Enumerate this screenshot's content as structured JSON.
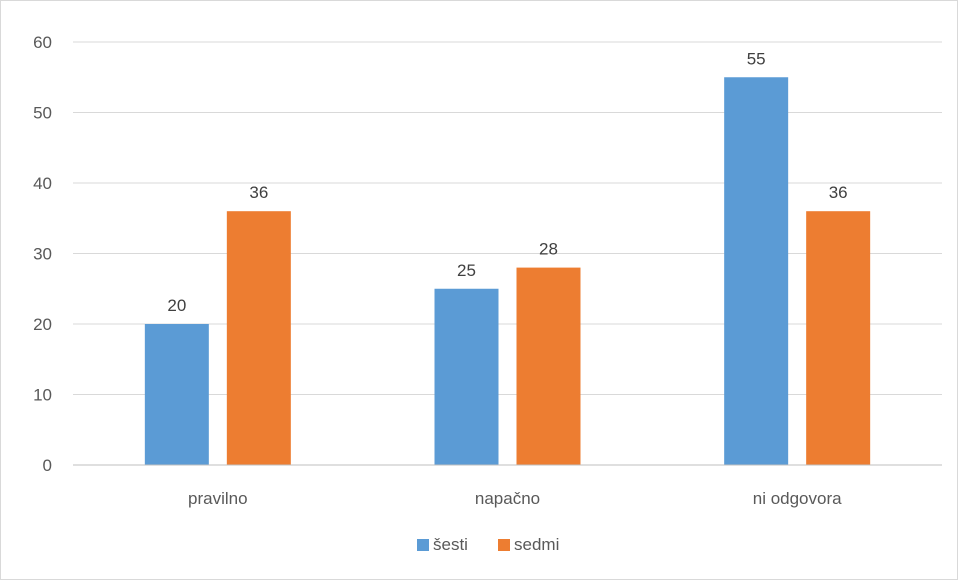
{
  "chart_data": {
    "type": "bar",
    "title": "",
    "xlabel": "",
    "ylabel": "",
    "categories": [
      "pravilno",
      "napačno",
      "ni odgovora"
    ],
    "series": [
      {
        "name": "šesti",
        "color": "#5b9bd5",
        "values": [
          20,
          25,
          55
        ]
      },
      {
        "name": "sedmi",
        "color": "#ed7d31",
        "values": [
          36,
          28,
          36
        ]
      }
    ],
    "ylim": [
      0,
      60
    ],
    "yticks": [
      0,
      10,
      20,
      30,
      40,
      50,
      60
    ],
    "grid": true,
    "data_labels": true,
    "legend_position": "bottom"
  }
}
